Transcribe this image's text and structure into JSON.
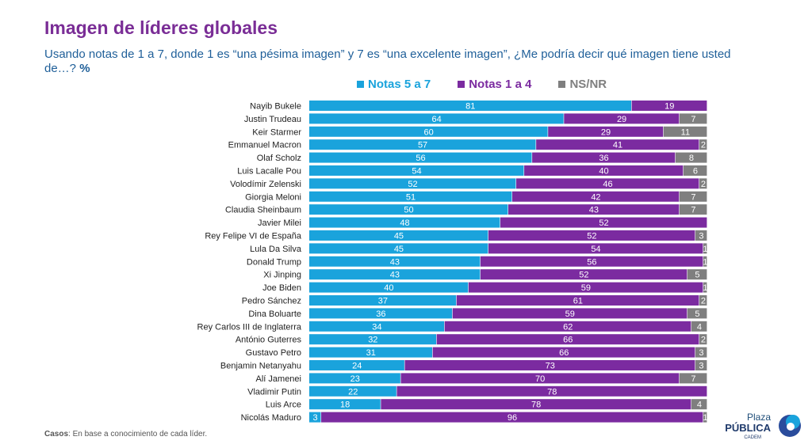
{
  "title": "Imagen de líderes globales",
  "subtitle": "Usando notas de 1 a 7, donde 1 es “una pésima imagen” y 7 es “una excelente imagen”, ¿Me podría decir qué imagen tiene usted de…?",
  "subtitle_unit": "%",
  "footnote": {
    "label": "Casos",
    "text": ": En base a conocimiento de cada líder."
  },
  "logo": {
    "line1": "Plaza",
    "line2": "PÚBLICA",
    "line3": "CADEM"
  },
  "colors": {
    "notas_5_7": "#1aa3dc",
    "notas_1_4": "#7b2ba0",
    "nsnr": "#7f7f7f",
    "title": "#7a2d96",
    "subtitle": "#1f5f99"
  },
  "chart_data": {
    "type": "bar",
    "orientation": "horizontal",
    "stacked": true,
    "xlim": [
      0,
      100
    ],
    "legend_position": "top",
    "categories": [
      "Nayib Bukele",
      "Justin Trudeau",
      "Keir Starmer",
      "Emmanuel Macron",
      "Olaf Scholz",
      "Luis Lacalle Pou",
      "Volodímir Zelenski",
      "Giorgia Meloni",
      "Claudia Sheinbaum",
      "Javier Milei",
      "Rey Felipe VI de España",
      "Lula Da Silva",
      "Donald Trump",
      "Xi Jinping",
      "Joe Biden",
      "Pedro Sánchez",
      "Dina Boluarte",
      "Rey Carlos III de Inglaterra",
      "António Guterres",
      "Gustavo Petro",
      "Benjamin Netanyahu",
      "Alí Jamenei",
      "Vladimir Putin",
      "Luis Arce",
      "Nicolás Maduro"
    ],
    "series": [
      {
        "name": "Notas 5 a 7",
        "values": [
          81,
          64,
          60,
          57,
          56,
          54,
          52,
          51,
          50,
          48,
          45,
          45,
          43,
          43,
          40,
          37,
          36,
          34,
          32,
          31,
          24,
          23,
          22,
          18,
          3
        ]
      },
      {
        "name": "Notas 1 a 4",
        "values": [
          19,
          29,
          29,
          41,
          36,
          40,
          46,
          42,
          43,
          52,
          52,
          54,
          56,
          52,
          59,
          61,
          59,
          62,
          66,
          66,
          73,
          70,
          78,
          78,
          96
        ]
      },
      {
        "name": "NS/NR",
        "values": [
          null,
          7,
          11,
          2,
          8,
          6,
          2,
          7,
          7,
          null,
          3,
          1,
          1,
          5,
          1,
          2,
          5,
          4,
          2,
          3,
          3,
          7,
          null,
          4,
          1
        ]
      }
    ]
  }
}
